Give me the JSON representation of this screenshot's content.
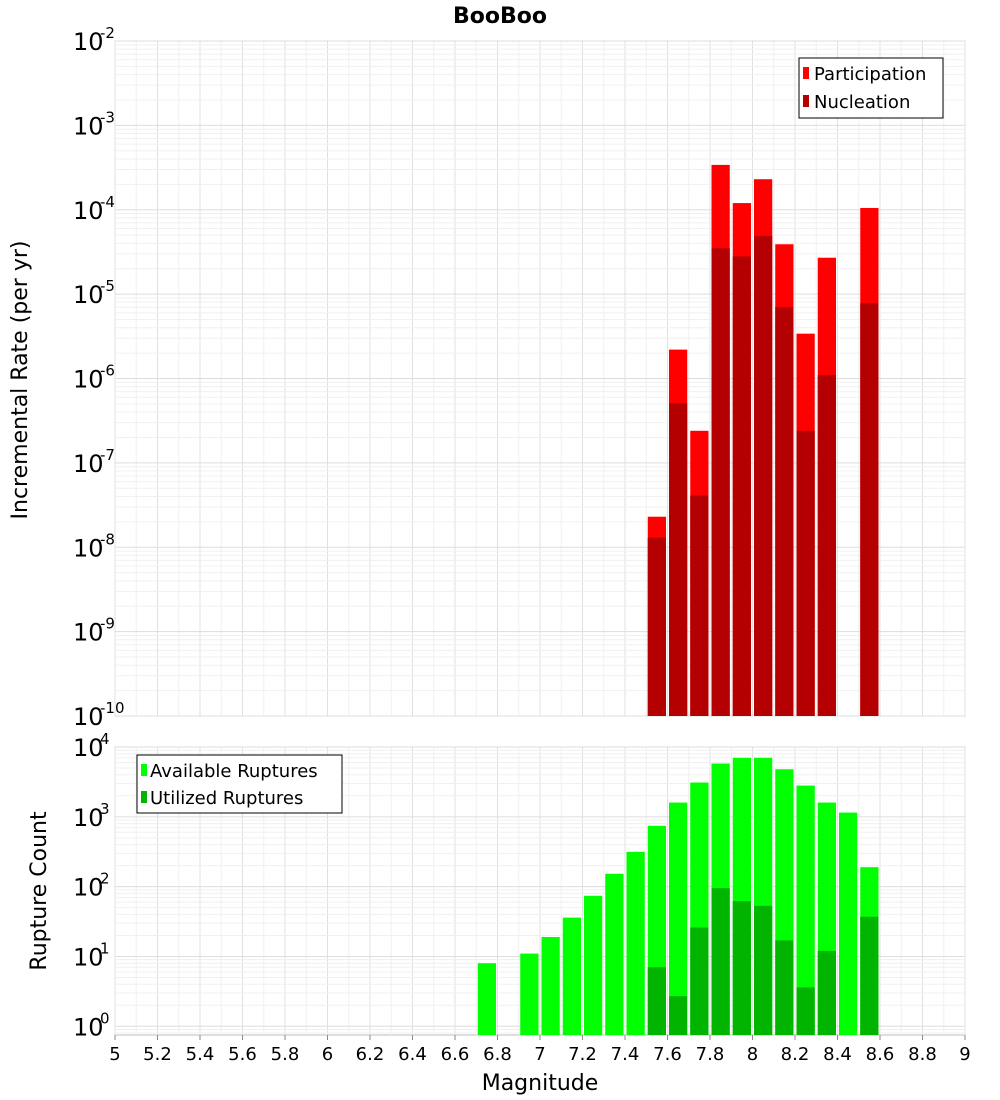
{
  "chart_data": [
    {
      "type": "bar",
      "title": "BooBoo",
      "xlabel": "",
      "ylabel": "Incremental Rate (per yr)",
      "yscale": "log",
      "ylim": [
        1e-10,
        0.01
      ],
      "xlim": [
        5,
        9
      ],
      "legend_placement": "top-right",
      "bar_mode": "overlay",
      "x": [
        7.55,
        7.65,
        7.75,
        7.85,
        7.95,
        8.05,
        8.15,
        8.25,
        8.35,
        8.45,
        8.55
      ],
      "series": [
        {
          "name": "Participation",
          "color": "#ff0000",
          "values": [
            2.3e-08,
            2.2e-06,
            2.4e-07,
            0.00034,
            0.00012,
            0.00023,
            3.9e-05,
            3.4e-06,
            2.7e-05,
            null,
            0.000105
          ]
        },
        {
          "name": "Nucleation",
          "color": "#b40000",
          "values": [
            1.3e-08,
            5.1e-07,
            4.1e-08,
            3.5e-05,
            2.8e-05,
            4.9e-05,
            7e-06,
            2.4e-07,
            1.1e-06,
            null,
            7.8e-06
          ]
        }
      ]
    },
    {
      "type": "bar",
      "title": "",
      "xlabel": "Magnitude",
      "ylabel": "Rupture Count",
      "yscale": "log",
      "ylim": [
        0.75,
        10000.0
      ],
      "xlim": [
        5,
        9
      ],
      "legend_placement": "top-left",
      "bar_mode": "overlay",
      "x": [
        6.75,
        6.85,
        6.95,
        7.05,
        7.15,
        7.25,
        7.35,
        7.45,
        7.55,
        7.65,
        7.75,
        7.85,
        7.95,
        8.05,
        8.15,
        8.25,
        8.35,
        8.45,
        8.55
      ],
      "series": [
        {
          "name": "Available Ruptures",
          "color": "#00ff00",
          "values": [
            8,
            null,
            11,
            19,
            36,
            74,
            153,
            315,
            742,
            1600,
            3100,
            5800,
            7000,
            7000,
            4800,
            2800,
            1600,
            1150,
            190
          ]
        },
        {
          "name": "Utilized Ruptures",
          "color": "#00b400",
          "values": [
            null,
            null,
            null,
            null,
            null,
            null,
            null,
            null,
            7,
            2.7,
            26,
            95,
            62,
            53,
            17,
            3.6,
            12,
            null,
            37
          ]
        }
      ]
    }
  ],
  "x_tick_labels": [
    "5",
    "5.2",
    "5.4",
    "5.6",
    "5.8",
    "6",
    "6.2",
    "6.4",
    "6.6",
    "6.8",
    "7",
    "7.2",
    "7.4",
    "7.6",
    "7.8",
    "8",
    "8.2",
    "8.4",
    "8.6",
    "8.8",
    "9"
  ],
  "top_y_exponents": [
    "-2",
    "-3",
    "-4",
    "-5",
    "-6",
    "-7",
    "-8",
    "-9",
    "-10"
  ],
  "bottom_y_exponents": [
    "4",
    "3",
    "2",
    "1",
    "0"
  ],
  "y_tick_base": "10"
}
